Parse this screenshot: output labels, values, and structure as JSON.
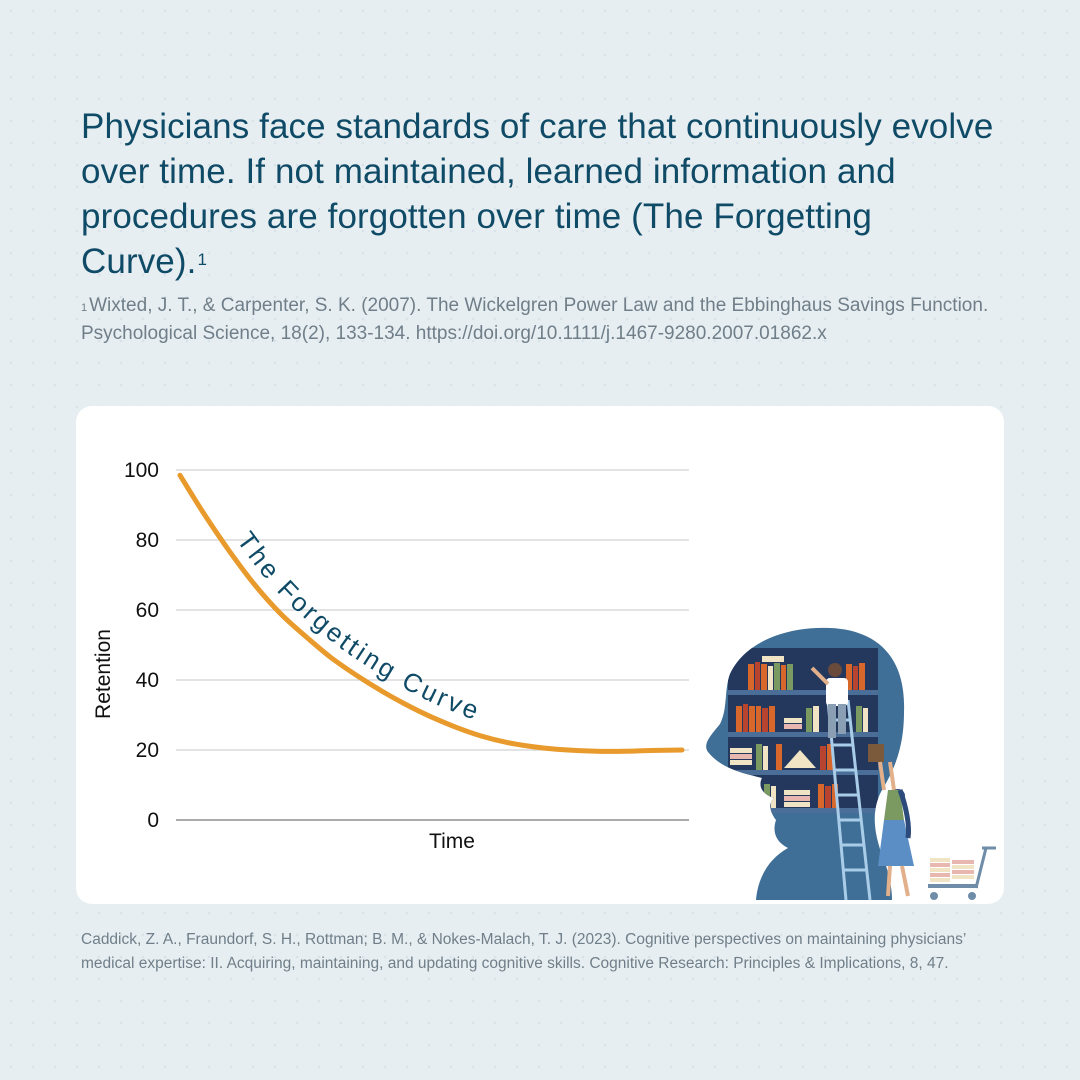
{
  "headline": {
    "text": "Physicians face standards of care that continuously evolve over time. If not maintained, learned information and procedures are forgotten over time (The Forgetting Curve).",
    "superscript": "1"
  },
  "footnote": {
    "marker": "1",
    "text": "Wixted, J. T., & Carpenter, S. K. (2007). The Wickelgren Power Law and the Ebbinghaus Savings Function. Psychological Science, 18(2), 133-134. https://doi.org/10.1111/j.1467-9280.2007.01862.x"
  },
  "chart_data": {
    "type": "line",
    "title": "",
    "xlabel": "Time",
    "ylabel": "Retention",
    "ylim": [
      0,
      100
    ],
    "yticks": [
      "0",
      "20",
      "40",
      "60",
      "80",
      "100"
    ],
    "grid": true,
    "series": [
      {
        "name": "The Forgetting Curve",
        "color": "#e89a2c",
        "x": [
          0,
          5,
          10,
          15,
          20,
          25,
          30,
          35,
          40,
          45,
          50,
          55,
          60,
          65,
          70,
          75,
          80,
          85,
          90,
          95,
          100
        ],
        "values": [
          98.5,
          87,
          76.5,
          67,
          59,
          52.5,
          46.5,
          41.5,
          37,
          33,
          29.5,
          26.5,
          24,
          22.2,
          21,
          20.2,
          19.8,
          19.6,
          19.7,
          19.9,
          20
        ]
      }
    ],
    "curve_label": "The Forgetting Curve"
  },
  "illustration": {
    "name": "head-with-bookshelves-illustration",
    "colors": {
      "head": "#3f6e96",
      "head_dark": "#1f3b62",
      "shelf_bg": "#24385e",
      "shelf": "#4a6e98",
      "ladder": "#a9cde8",
      "book_orange": "#d7672a",
      "book_red": "#b8432f",
      "book_green": "#7a9a62",
      "book_cream": "#f1e4c4",
      "book_pink": "#e8b7b0"
    }
  },
  "citation": {
    "text": "Caddick, Z. A., Fraundorf, S. H., Rottman; B. M., & Nokes-Malach, T. J. (2023). Cognitive perspectives on maintaining physicians’ medical expertise: II. Acquiring, maintaining, and updating cognitive skills. Cognitive Research: Principles & Implications, 8, 47."
  }
}
